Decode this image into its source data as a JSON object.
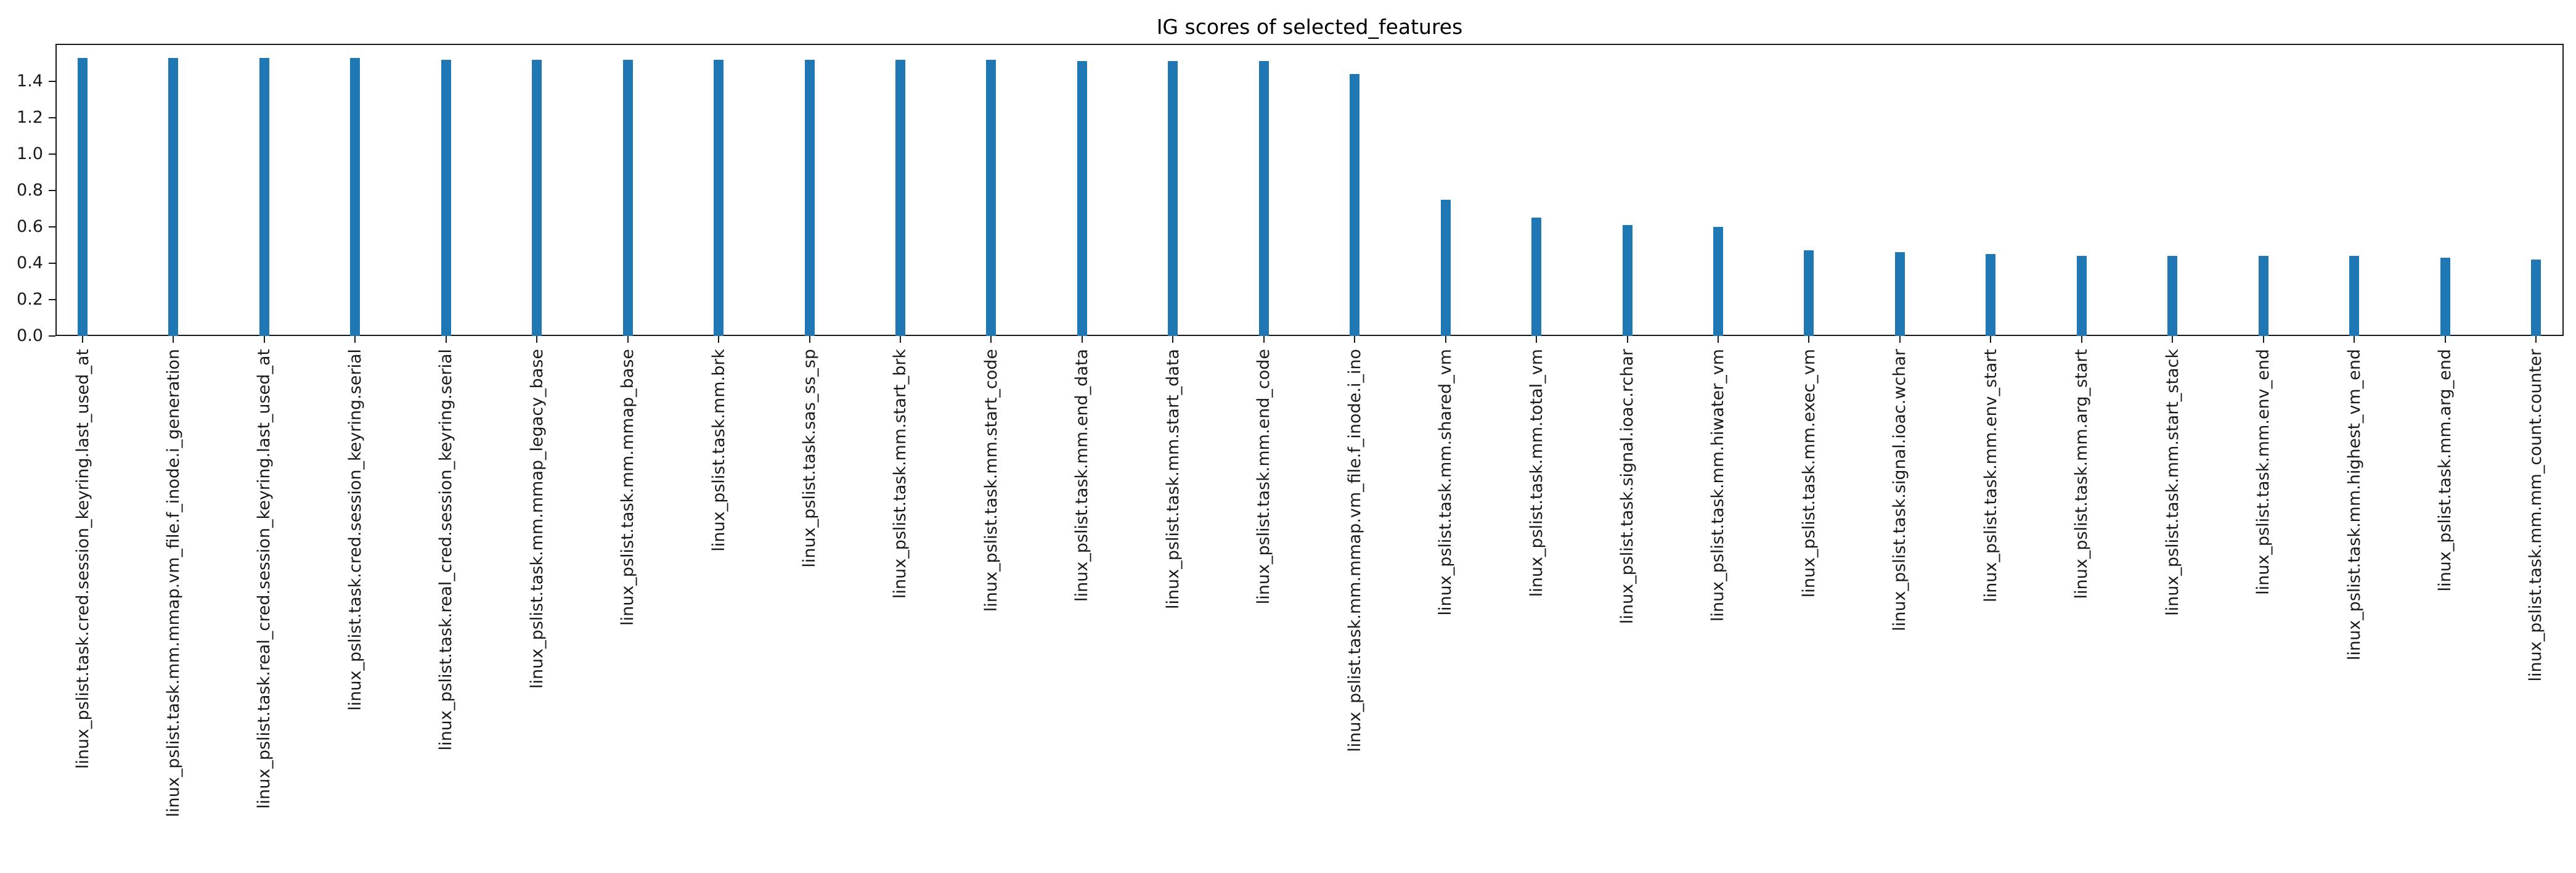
{
  "chart_data": {
    "type": "bar",
    "title": "IG scores of selected_features",
    "xlabel": "",
    "ylabel": "",
    "ylim": [
      0,
      1.6065
    ],
    "yticks": [
      0.0,
      0.2,
      0.4,
      0.6,
      0.8,
      1.0,
      1.2,
      1.4
    ],
    "grid": false,
    "legend_position": "none",
    "bar_color": "#1f77b4",
    "categories": [
      "linux_pslist.task.cred.session_keyring.last_used_at",
      "linux_pslist.task.mm.mmap.vm_file.f_inode.i_generation",
      "linux_pslist.task.real_cred.session_keyring.last_used_at",
      "linux_pslist.task.cred.session_keyring.serial",
      "linux_pslist.task.real_cred.session_keyring.serial",
      "linux_pslist.task.mm.mmap_legacy_base",
      "linux_pslist.task.mm.mmap_base",
      "linux_pslist.task.mm.brk",
      "linux_pslist.task.sas_ss_sp",
      "linux_pslist.task.mm.start_brk",
      "linux_pslist.task.mm.start_code",
      "linux_pslist.task.mm.end_data",
      "linux_pslist.task.mm.start_data",
      "linux_pslist.task.mm.end_code",
      "linux_pslist.task.mm.mmap.vm_file.f_inode.i_ino",
      "linux_pslist.task.mm.shared_vm",
      "linux_pslist.task.mm.total_vm",
      "linux_pslist.task.signal.ioac.rchar",
      "linux_pslist.task.mm.hiwater_vm",
      "linux_pslist.task.mm.exec_vm",
      "linux_pslist.task.signal.ioac.wchar",
      "linux_pslist.task.mm.env_start",
      "linux_pslist.task.mm.arg_start",
      "linux_pslist.task.mm.start_stack",
      "linux_pslist.task.mm.env_end",
      "linux_pslist.task.mm.highest_vm_end",
      "linux_pslist.task.mm.arg_end",
      "linux_pslist.task.mm.mm_count.counter"
    ],
    "values": [
      1.53,
      1.53,
      1.53,
      1.53,
      1.52,
      1.52,
      1.52,
      1.52,
      1.52,
      1.52,
      1.52,
      1.51,
      1.51,
      1.51,
      1.44,
      0.75,
      0.65,
      0.61,
      0.6,
      0.47,
      0.46,
      0.45,
      0.44,
      0.44,
      0.44,
      0.44,
      0.43,
      0.42
    ]
  }
}
